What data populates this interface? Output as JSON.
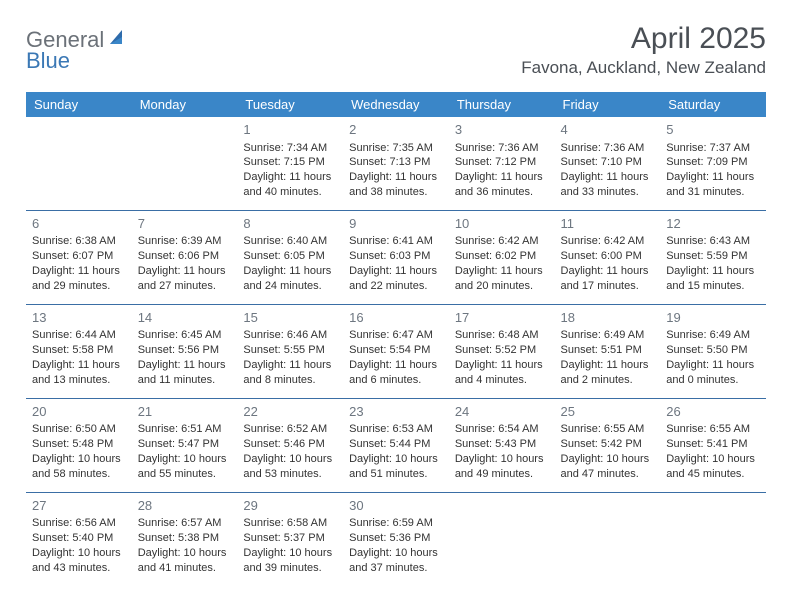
{
  "brand": {
    "text_gray": "General",
    "text_blue": "Blue"
  },
  "header": {
    "month_title": "April 2025",
    "location": "Favona, Auckland, New Zealand"
  },
  "colors": {
    "header_bg": "#3a86c8",
    "header_text": "#ffffff",
    "row_sep": "#3a6ea5",
    "daynum": "#6d7680",
    "body_text": "#333333",
    "title_text": "#4a4f55",
    "logo_gray": "#6b7178",
    "logo_blue": "#3b78b5"
  },
  "calendar": {
    "day_headers": [
      "Sunday",
      "Monday",
      "Tuesday",
      "Wednesday",
      "Thursday",
      "Friday",
      "Saturday"
    ],
    "weeks": [
      [
        null,
        null,
        {
          "n": "1",
          "sr": "Sunrise: 7:34 AM",
          "ss": "Sunset: 7:15 PM",
          "d1": "Daylight: 11 hours",
          "d2": "and 40 minutes."
        },
        {
          "n": "2",
          "sr": "Sunrise: 7:35 AM",
          "ss": "Sunset: 7:13 PM",
          "d1": "Daylight: 11 hours",
          "d2": "and 38 minutes."
        },
        {
          "n": "3",
          "sr": "Sunrise: 7:36 AM",
          "ss": "Sunset: 7:12 PM",
          "d1": "Daylight: 11 hours",
          "d2": "and 36 minutes."
        },
        {
          "n": "4",
          "sr": "Sunrise: 7:36 AM",
          "ss": "Sunset: 7:10 PM",
          "d1": "Daylight: 11 hours",
          "d2": "and 33 minutes."
        },
        {
          "n": "5",
          "sr": "Sunrise: 7:37 AM",
          "ss": "Sunset: 7:09 PM",
          "d1": "Daylight: 11 hours",
          "d2": "and 31 minutes."
        }
      ],
      [
        {
          "n": "6",
          "sr": "Sunrise: 6:38 AM",
          "ss": "Sunset: 6:07 PM",
          "d1": "Daylight: 11 hours",
          "d2": "and 29 minutes."
        },
        {
          "n": "7",
          "sr": "Sunrise: 6:39 AM",
          "ss": "Sunset: 6:06 PM",
          "d1": "Daylight: 11 hours",
          "d2": "and 27 minutes."
        },
        {
          "n": "8",
          "sr": "Sunrise: 6:40 AM",
          "ss": "Sunset: 6:05 PM",
          "d1": "Daylight: 11 hours",
          "d2": "and 24 minutes."
        },
        {
          "n": "9",
          "sr": "Sunrise: 6:41 AM",
          "ss": "Sunset: 6:03 PM",
          "d1": "Daylight: 11 hours",
          "d2": "and 22 minutes."
        },
        {
          "n": "10",
          "sr": "Sunrise: 6:42 AM",
          "ss": "Sunset: 6:02 PM",
          "d1": "Daylight: 11 hours",
          "d2": "and 20 minutes."
        },
        {
          "n": "11",
          "sr": "Sunrise: 6:42 AM",
          "ss": "Sunset: 6:00 PM",
          "d1": "Daylight: 11 hours",
          "d2": "and 17 minutes."
        },
        {
          "n": "12",
          "sr": "Sunrise: 6:43 AM",
          "ss": "Sunset: 5:59 PM",
          "d1": "Daylight: 11 hours",
          "d2": "and 15 minutes."
        }
      ],
      [
        {
          "n": "13",
          "sr": "Sunrise: 6:44 AM",
          "ss": "Sunset: 5:58 PM",
          "d1": "Daylight: 11 hours",
          "d2": "and 13 minutes."
        },
        {
          "n": "14",
          "sr": "Sunrise: 6:45 AM",
          "ss": "Sunset: 5:56 PM",
          "d1": "Daylight: 11 hours",
          "d2": "and 11 minutes."
        },
        {
          "n": "15",
          "sr": "Sunrise: 6:46 AM",
          "ss": "Sunset: 5:55 PM",
          "d1": "Daylight: 11 hours",
          "d2": "and 8 minutes."
        },
        {
          "n": "16",
          "sr": "Sunrise: 6:47 AM",
          "ss": "Sunset: 5:54 PM",
          "d1": "Daylight: 11 hours",
          "d2": "and 6 minutes."
        },
        {
          "n": "17",
          "sr": "Sunrise: 6:48 AM",
          "ss": "Sunset: 5:52 PM",
          "d1": "Daylight: 11 hours",
          "d2": "and 4 minutes."
        },
        {
          "n": "18",
          "sr": "Sunrise: 6:49 AM",
          "ss": "Sunset: 5:51 PM",
          "d1": "Daylight: 11 hours",
          "d2": "and 2 minutes."
        },
        {
          "n": "19",
          "sr": "Sunrise: 6:49 AM",
          "ss": "Sunset: 5:50 PM",
          "d1": "Daylight: 11 hours",
          "d2": "and 0 minutes."
        }
      ],
      [
        {
          "n": "20",
          "sr": "Sunrise: 6:50 AM",
          "ss": "Sunset: 5:48 PM",
          "d1": "Daylight: 10 hours",
          "d2": "and 58 minutes."
        },
        {
          "n": "21",
          "sr": "Sunrise: 6:51 AM",
          "ss": "Sunset: 5:47 PM",
          "d1": "Daylight: 10 hours",
          "d2": "and 55 minutes."
        },
        {
          "n": "22",
          "sr": "Sunrise: 6:52 AM",
          "ss": "Sunset: 5:46 PM",
          "d1": "Daylight: 10 hours",
          "d2": "and 53 minutes."
        },
        {
          "n": "23",
          "sr": "Sunrise: 6:53 AM",
          "ss": "Sunset: 5:44 PM",
          "d1": "Daylight: 10 hours",
          "d2": "and 51 minutes."
        },
        {
          "n": "24",
          "sr": "Sunrise: 6:54 AM",
          "ss": "Sunset: 5:43 PM",
          "d1": "Daylight: 10 hours",
          "d2": "and 49 minutes."
        },
        {
          "n": "25",
          "sr": "Sunrise: 6:55 AM",
          "ss": "Sunset: 5:42 PM",
          "d1": "Daylight: 10 hours",
          "d2": "and 47 minutes."
        },
        {
          "n": "26",
          "sr": "Sunrise: 6:55 AM",
          "ss": "Sunset: 5:41 PM",
          "d1": "Daylight: 10 hours",
          "d2": "and 45 minutes."
        }
      ],
      [
        {
          "n": "27",
          "sr": "Sunrise: 6:56 AM",
          "ss": "Sunset: 5:40 PM",
          "d1": "Daylight: 10 hours",
          "d2": "and 43 minutes."
        },
        {
          "n": "28",
          "sr": "Sunrise: 6:57 AM",
          "ss": "Sunset: 5:38 PM",
          "d1": "Daylight: 10 hours",
          "d2": "and 41 minutes."
        },
        {
          "n": "29",
          "sr": "Sunrise: 6:58 AM",
          "ss": "Sunset: 5:37 PM",
          "d1": "Daylight: 10 hours",
          "d2": "and 39 minutes."
        },
        {
          "n": "30",
          "sr": "Sunrise: 6:59 AM",
          "ss": "Sunset: 5:36 PM",
          "d1": "Daylight: 10 hours",
          "d2": "and 37 minutes."
        },
        null,
        null,
        null
      ]
    ]
  }
}
